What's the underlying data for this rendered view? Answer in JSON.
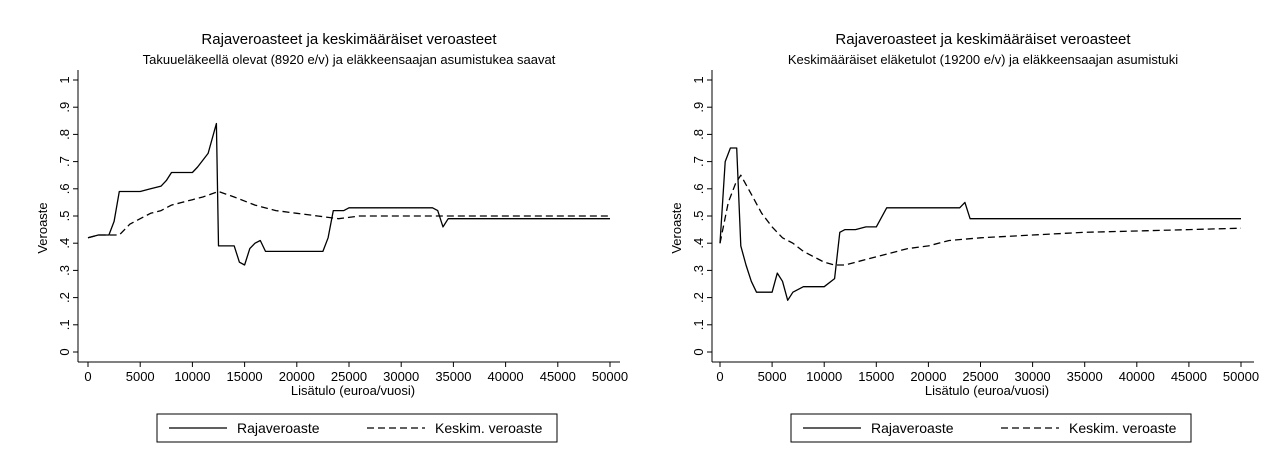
{
  "chart_data": [
    {
      "type": "line",
      "title": "Rajaveroasteet ja keskimääräiset veroasteet",
      "subtitle": "Takuueläkeellä olevat (8920 e/v) ja eläkkeensaajan asumistukea saavat",
      "xlabel": "Lisätulo (euroa/vuosi)",
      "ylabel": "Veroaste",
      "xlim": [
        0,
        50000
      ],
      "ylim": [
        0,
        1
      ],
      "xticks": [
        0,
        5000,
        10000,
        15000,
        20000,
        25000,
        30000,
        35000,
        40000,
        45000,
        50000
      ],
      "yticks": [
        0,
        0.1,
        0.2,
        0.3,
        0.4,
        0.5,
        0.6,
        0.7,
        0.8,
        0.9,
        1
      ],
      "ytick_labels": [
        "0",
        ".1",
        ".2",
        ".3",
        ".4",
        ".5",
        ".6",
        ".7",
        ".8",
        ".9",
        "1"
      ],
      "grid": false,
      "legend_position": "bottom",
      "series": [
        {
          "name": "Rajaveroaste",
          "style": "solid",
          "x": [
            0,
            1000,
            2000,
            2500,
            3000,
            5000,
            6000,
            7000,
            7500,
            8000,
            9000,
            10000,
            10500,
            11500,
            12300,
            12500,
            13000,
            14000,
            14500,
            15000,
            15500,
            16000,
            16500,
            17000,
            18000,
            19000,
            20000,
            21000,
            22000,
            22500,
            23000,
            23500,
            24500,
            25000,
            27000,
            30000,
            33000,
            33500,
            34000,
            34500,
            35000,
            40000,
            45000,
            50000
          ],
          "y": [
            0.42,
            0.43,
            0.43,
            0.48,
            0.59,
            0.59,
            0.6,
            0.61,
            0.63,
            0.66,
            0.66,
            0.66,
            0.68,
            0.73,
            0.84,
            0.39,
            0.39,
            0.39,
            0.33,
            0.32,
            0.38,
            0.4,
            0.41,
            0.37,
            0.37,
            0.37,
            0.37,
            0.37,
            0.37,
            0.37,
            0.42,
            0.52,
            0.52,
            0.53,
            0.53,
            0.53,
            0.53,
            0.52,
            0.46,
            0.49,
            0.49,
            0.49,
            0.49,
            0.49
          ]
        },
        {
          "name": "Keskim. veroaste",
          "style": "dashed",
          "x": [
            0,
            1000,
            2000,
            3000,
            4000,
            5000,
            6000,
            7000,
            8000,
            9000,
            10000,
            11000,
            12500,
            14000,
            16000,
            18000,
            20000,
            22000,
            24000,
            26000,
            30000,
            35000,
            40000,
            45000,
            50000
          ],
          "y": [
            0.42,
            0.43,
            0.43,
            0.43,
            0.47,
            0.49,
            0.51,
            0.52,
            0.54,
            0.55,
            0.56,
            0.57,
            0.59,
            0.57,
            0.54,
            0.52,
            0.51,
            0.5,
            0.49,
            0.5,
            0.5,
            0.5,
            0.5,
            0.5,
            0.5
          ]
        }
      ]
    },
    {
      "type": "line",
      "title": "Rajaveroasteet ja keskimääräiset veroasteet",
      "subtitle": "Keskimääräiset eläketulot (19200 e/v) ja eläkkeensaajan asumistuki",
      "xlabel": "Lisätulo (euroa/vuosi)",
      "ylabel": "Veroaste",
      "xlim": [
        0,
        50000
      ],
      "ylim": [
        0,
        1
      ],
      "xticks": [
        0,
        5000,
        10000,
        15000,
        20000,
        25000,
        30000,
        35000,
        40000,
        45000,
        50000
      ],
      "yticks": [
        0,
        0.1,
        0.2,
        0.3,
        0.4,
        0.5,
        0.6,
        0.7,
        0.8,
        0.9,
        1
      ],
      "ytick_labels": [
        "0",
        ".1",
        ".2",
        ".3",
        ".4",
        ".5",
        ".6",
        ".7",
        ".8",
        ".9",
        "1"
      ],
      "grid": false,
      "legend_position": "bottom",
      "series": [
        {
          "name": "Rajaveroaste",
          "style": "solid",
          "x": [
            0,
            500,
            1000,
            1600,
            2000,
            2500,
            3000,
            3500,
            4500,
            5000,
            5500,
            6000,
            6500,
            7000,
            8000,
            9000,
            10000,
            11000,
            11500,
            12000,
            13000,
            14000,
            15000,
            16000,
            20000,
            23000,
            23500,
            24000,
            30000,
            40000,
            50000
          ],
          "y": [
            0.4,
            0.7,
            0.75,
            0.75,
            0.39,
            0.32,
            0.26,
            0.22,
            0.22,
            0.22,
            0.29,
            0.26,
            0.19,
            0.22,
            0.24,
            0.24,
            0.24,
            0.27,
            0.44,
            0.45,
            0.45,
            0.46,
            0.46,
            0.53,
            0.53,
            0.53,
            0.55,
            0.49,
            0.49,
            0.49,
            0.49
          ]
        },
        {
          "name": "Keskim. veroaste",
          "style": "dashed",
          "x": [
            0,
            800,
            1500,
            2000,
            3000,
            4000,
            5000,
            6000,
            7000,
            8000,
            9000,
            10000,
            11000,
            12000,
            14000,
            16000,
            18000,
            20000,
            22000,
            25000,
            30000,
            35000,
            40000,
            45000,
            50000
          ],
          "y": [
            0.4,
            0.55,
            0.62,
            0.65,
            0.58,
            0.51,
            0.46,
            0.42,
            0.4,
            0.37,
            0.35,
            0.33,
            0.32,
            0.32,
            0.34,
            0.36,
            0.38,
            0.39,
            0.41,
            0.42,
            0.43,
            0.44,
            0.445,
            0.45,
            0.455
          ]
        }
      ]
    }
  ]
}
